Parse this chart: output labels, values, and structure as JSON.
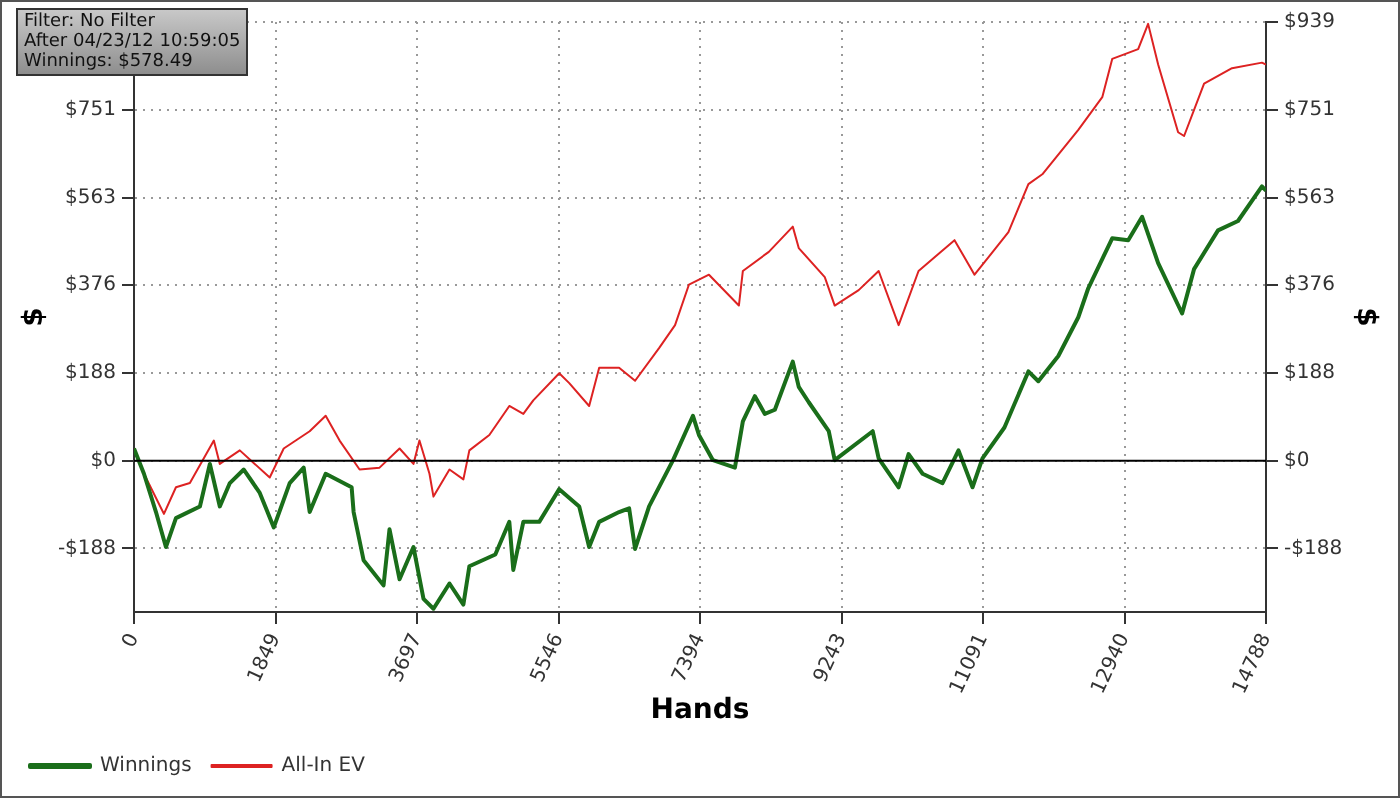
{
  "chart_data": {
    "type": "line",
    "xlabel": "Hands",
    "ylabel": "$",
    "y2label": "$",
    "annotations": [
      "Filter: No Filter",
      "After 04/23/12 10:59:05",
      "Winnings: $578.49"
    ],
    "xlim": [
      0,
      14788
    ],
    "xticks": [
      0,
      1849,
      3697,
      5546,
      7394,
      9243,
      11091,
      12940,
      14788
    ],
    "ylim": [
      -324,
      939
    ],
    "yticks": [
      {
        "value": -188,
        "label": "-$188"
      },
      {
        "value": 0,
        "label": "$0"
      },
      {
        "value": 188,
        "label": "$188"
      },
      {
        "value": 376,
        "label": "$376"
      },
      {
        "value": 563,
        "label": "$563"
      },
      {
        "value": 751,
        "label": "$751"
      },
      {
        "value": 939,
        "label": null
      }
    ],
    "y2lim": [
      -324,
      939
    ],
    "y2ticks": [
      {
        "value": -188,
        "label": "-$188"
      },
      {
        "value": 0,
        "label": "$0"
      },
      {
        "value": 188,
        "label": "$188"
      },
      {
        "value": 376,
        "label": "$376"
      },
      {
        "value": 563,
        "label": "$563"
      },
      {
        "value": 751,
        "label": "$751"
      },
      {
        "value": 939,
        "label": "$939"
      }
    ],
    "grid": true,
    "legend": "bottom left",
    "marker": "none",
    "line_style": "solid",
    "ref_lines": [
      {
        "axis": "y",
        "value": 0,
        "color": "#000000"
      }
    ],
    "series": [
      {
        "name": "Winnings",
        "color": "#1a6e1a",
        "x": [
          0,
          130,
          287,
          417,
          548,
          861,
          991,
          1121,
          1252,
          1434,
          1643,
          1826,
          2034,
          2217,
          2295,
          2504,
          2843,
          2869,
          2999,
          3260,
          3338,
          3469,
          3651,
          3782,
          3912,
          4121,
          4303,
          4381,
          4720,
          4903,
          4955,
          5086,
          5294,
          5555,
          5816,
          5946,
          6077,
          6337,
          6468,
          6546,
          6729,
          7042,
          7302,
          7380,
          7563,
          7850,
          7954,
          8111,
          8241,
          8372,
          8606,
          8684,
          8815,
          9076,
          9154,
          9650,
          9728,
          9989,
          10119,
          10302,
          10562,
          10771,
          10954,
          11084,
          11371,
          11684,
          11814,
          12075,
          12336,
          12466,
          12779,
          12988,
          13170,
          13379,
          13692,
          13848,
          14161,
          14422,
          14735,
          14788
        ],
        "values": [
          26,
          -28,
          -110,
          -185,
          -123,
          -98,
          -7,
          -98,
          -48,
          -19,
          -69,
          -143,
          -48,
          -15,
          -110,
          -28,
          -57,
          -110,
          -213,
          -267,
          -147,
          -254,
          -185,
          -296,
          -317,
          -263,
          -308,
          -226,
          -201,
          -131,
          -234,
          -131,
          -131,
          -61,
          -98,
          -185,
          -131,
          -110,
          -102,
          -189,
          -98,
          1,
          96,
          55,
          1,
          -15,
          84,
          138,
          100,
          109,
          212,
          158,
          125,
          63,
          1,
          63,
          5,
          -57,
          14,
          -28,
          -48,
          22,
          -57,
          5,
          71,
          191,
          170,
          224,
          307,
          369,
          476,
          472,
          522,
          423,
          315,
          410,
          493,
          513,
          587,
          578
        ]
      },
      {
        "name": "All-In EV",
        "color": "#dd2222",
        "x": [
          0,
          130,
          391,
          548,
          730,
          1043,
          1121,
          1382,
          1773,
          1956,
          2295,
          2504,
          2686,
          2947,
          3208,
          3469,
          3651,
          3729,
          3860,
          3912,
          4121,
          4303,
          4381,
          4642,
          4903,
          5086,
          5216,
          5555,
          5686,
          5946,
          6077,
          6337,
          6546,
          6859,
          7068,
          7250,
          7511,
          7902,
          7954,
          8293,
          8606,
          8684,
          9024,
          9154,
          9467,
          9728,
          9989,
          10249,
          10719,
          10980,
          11423,
          11684,
          11866,
          12336,
          12649,
          12779,
          13118,
          13248,
          13379,
          13640,
          13718,
          13979,
          14344,
          14735,
          14788
        ],
        "values": [
          26,
          -28,
          -114,
          -57,
          -48,
          43,
          -7,
          22,
          -36,
          26,
          63,
          96,
          43,
          -19,
          -15,
          26,
          -7,
          43,
          -28,
          -77,
          -19,
          -40,
          22,
          55,
          117,
          100,
          129,
          187,
          166,
          117,
          199,
          199,
          171,
          241,
          290,
          377,
          398,
          332,
          406,
          447,
          501,
          455,
          393,
          332,
          365,
          406,
          290,
          406,
          472,
          398,
          489,
          592,
          613,
          708,
          778,
          860,
          881,
          935,
          848,
          703,
          695,
          807,
          840,
          852,
          848
        ]
      }
    ]
  }
}
